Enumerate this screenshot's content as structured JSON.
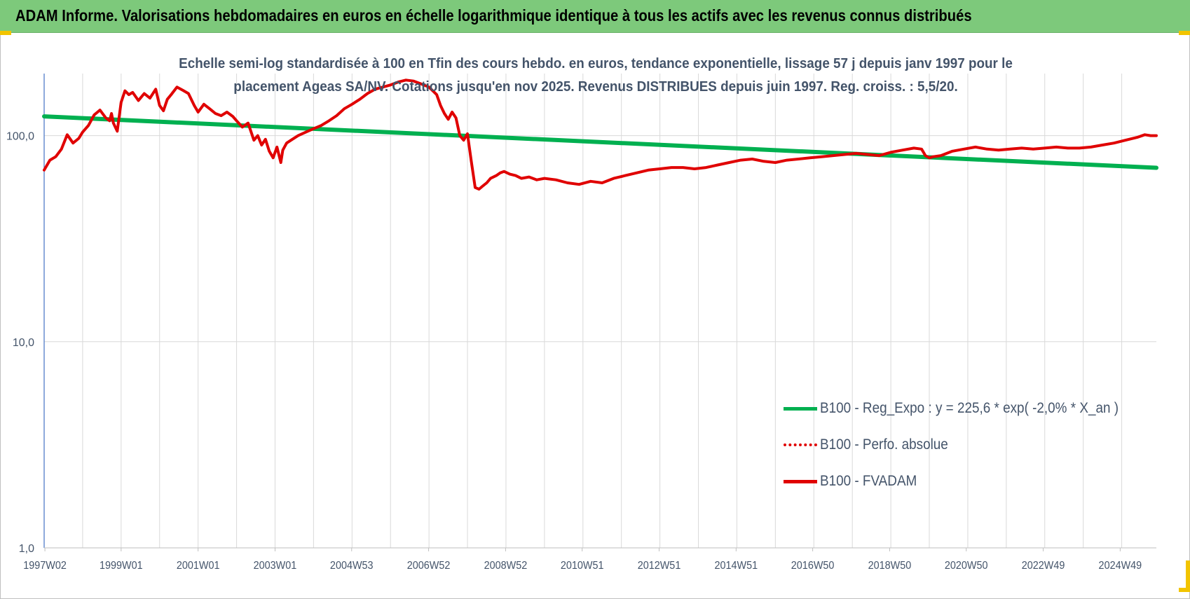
{
  "header": {
    "title": "ADAM Informe. Valorisations hebdomadaires en euros en échelle logarithmique identique à tous les actifs avec les revenus connus distribués"
  },
  "colors": {
    "header_bg": "#7dc97b",
    "regression": "#00b050",
    "fvadam": "#e00000",
    "perfo": "#e00000",
    "grid": "#d9d9d9",
    "axis_text": "#44546a"
  },
  "chart_data": {
    "type": "line",
    "title_line1": "Echelle semi-log standardisée à 100 en Tfin des cours hebdo. en euros, tendance exponentielle, lissage 57 j depuis janv 1997 pour le",
    "title_line2": "placement Ageas SA/NV. Cotations jusqu'en nov 2025. Revenus DISTRIBUES depuis juin 1997. Reg. croiss. : 5,5/20.",
    "y_scale": "log",
    "ylim": [
      1,
      200
    ],
    "y_ticks": [
      1,
      10,
      100
    ],
    "y_tick_labels": [
      "1,0",
      "10,0",
      "100,0"
    ],
    "x_range": [
      1997.0,
      2025.9
    ],
    "x_ticks": [
      1997.02,
      1999.0,
      2001.0,
      2003.0,
      2004.99,
      2006.99,
      2008.99,
      2010.98,
      2012.98,
      2014.98,
      2016.97,
      2018.97,
      2020.96,
      2022.96,
      2024.96
    ],
    "x_tick_labels": [
      "1997W02",
      "1999W01",
      "2001W01",
      "2003W01",
      "2004W53",
      "2006W52",
      "2008W52",
      "2010W51",
      "2012W51",
      "2014W51",
      "2016W50",
      "2018W50",
      "2020W50",
      "2022W49",
      "2024W49"
    ],
    "grid": "vertical and horizontal",
    "legend_position": "bottom-right",
    "series": [
      {
        "name": "B100 - Reg_Expo : y = 225,6 * exp( -2,0% *  X_an )",
        "style": "solid-green",
        "x": [
          1997.0,
          2025.9
        ],
        "y": [
          124,
          69.8
        ]
      },
      {
        "name": "B100 - Perfo. absolue",
        "style": "dotted-red",
        "x": [],
        "y": []
      },
      {
        "name": "B100 - FVADAM",
        "style": "solid-red",
        "x": [
          1997.0,
          1997.15,
          1997.3,
          1997.45,
          1997.6,
          1997.75,
          1997.9,
          1998.0,
          1998.15,
          1998.3,
          1998.45,
          1998.6,
          1998.7,
          1998.75,
          1998.8,
          1998.9,
          1999.0,
          1999.1,
          1999.2,
          1999.3,
          1999.45,
          1999.6,
          1999.75,
          1999.9,
          2000.0,
          2000.1,
          2000.2,
          2000.3,
          2000.45,
          2000.6,
          2000.75,
          2000.9,
          2001.0,
          2001.15,
          2001.3,
          2001.45,
          2001.6,
          2001.75,
          2001.9,
          2002.0,
          2002.15,
          2002.3,
          2002.45,
          2002.55,
          2002.65,
          2002.75,
          2002.85,
          2002.95,
          2003.05,
          2003.15,
          2003.2,
          2003.3,
          2003.45,
          2003.6,
          2003.8,
          2004.0,
          2004.2,
          2004.4,
          2004.6,
          2004.8,
          2005.0,
          2005.2,
          2005.4,
          2005.6,
          2005.8,
          2006.0,
          2006.2,
          2006.4,
          2006.6,
          2006.8,
          2007.0,
          2007.2,
          2007.3,
          2007.4,
          2007.5,
          2007.6,
          2007.7,
          2007.8,
          2007.9,
          2008.0,
          2008.1,
          2008.2,
          2008.3,
          2008.4,
          2008.5,
          2008.6,
          2008.75,
          2008.85,
          2008.95,
          2009.1,
          2009.25,
          2009.4,
          2009.6,
          2009.8,
          2010.0,
          2010.3,
          2010.6,
          2010.9,
          2011.2,
          2011.5,
          2011.8,
          2012.1,
          2012.4,
          2012.7,
          2013.0,
          2013.3,
          2013.6,
          2013.9,
          2014.2,
          2014.5,
          2014.8,
          2015.1,
          2015.4,
          2015.7,
          2016.0,
          2016.3,
          2016.6,
          2016.9,
          2017.2,
          2017.5,
          2017.8,
          2018.1,
          2018.4,
          2018.7,
          2019.0,
          2019.3,
          2019.6,
          2019.8,
          2019.9,
          2020.0,
          2020.1,
          2020.3,
          2020.6,
          2020.9,
          2021.2,
          2021.5,
          2021.8,
          2022.1,
          2022.4,
          2022.7,
          2023.0,
          2023.3,
          2023.6,
          2023.9,
          2024.2,
          2024.5,
          2024.8,
          2025.1,
          2025.4,
          2025.6,
          2025.75,
          2025.9
        ],
        "y": [
          68,
          76,
          79,
          86,
          101,
          92,
          97,
          104,
          112,
          126,
          133,
          122,
          118,
          128,
          115,
          105,
          145,
          165,
          158,
          162,
          148,
          160,
          152,
          168,
          140,
          132,
          150,
          158,
          172,
          166,
          160,
          140,
          130,
          142,
          135,
          128,
          125,
          130,
          124,
          118,
          110,
          115,
          95,
          100,
          90,
          96,
          84,
          78,
          88,
          74,
          85,
          92,
          96,
          100,
          104,
          108,
          112,
          118,
          125,
          135,
          142,
          150,
          160,
          168,
          172,
          176,
          182,
          186,
          184,
          178,
          172,
          158,
          140,
          128,
          120,
          130,
          122,
          100,
          95,
          102,
          75,
          56,
          55,
          57,
          59,
          62,
          64,
          66,
          67,
          65,
          64,
          62,
          63,
          61,
          62,
          61,
          59,
          58,
          60,
          59,
          62,
          64,
          66,
          68,
          69,
          70,
          70,
          69,
          70,
          72,
          74,
          76,
          77,
          75,
          74,
          76,
          77,
          78,
          79,
          80,
          81,
          82,
          81,
          80,
          83,
          85,
          87,
          86,
          80,
          78,
          79,
          80,
          84,
          86,
          88,
          86,
          85,
          86,
          87,
          86,
          87,
          88,
          87,
          87,
          88,
          90,
          92,
          95,
          98,
          101,
          100,
          100
        ]
      }
    ]
  },
  "legend": {
    "entries": [
      "B100 - Reg_Expo : y = 225,6 * exp( -2,0% *  X_an )",
      "B100 - Perfo. absolue",
      "B100 - FVADAM"
    ]
  }
}
